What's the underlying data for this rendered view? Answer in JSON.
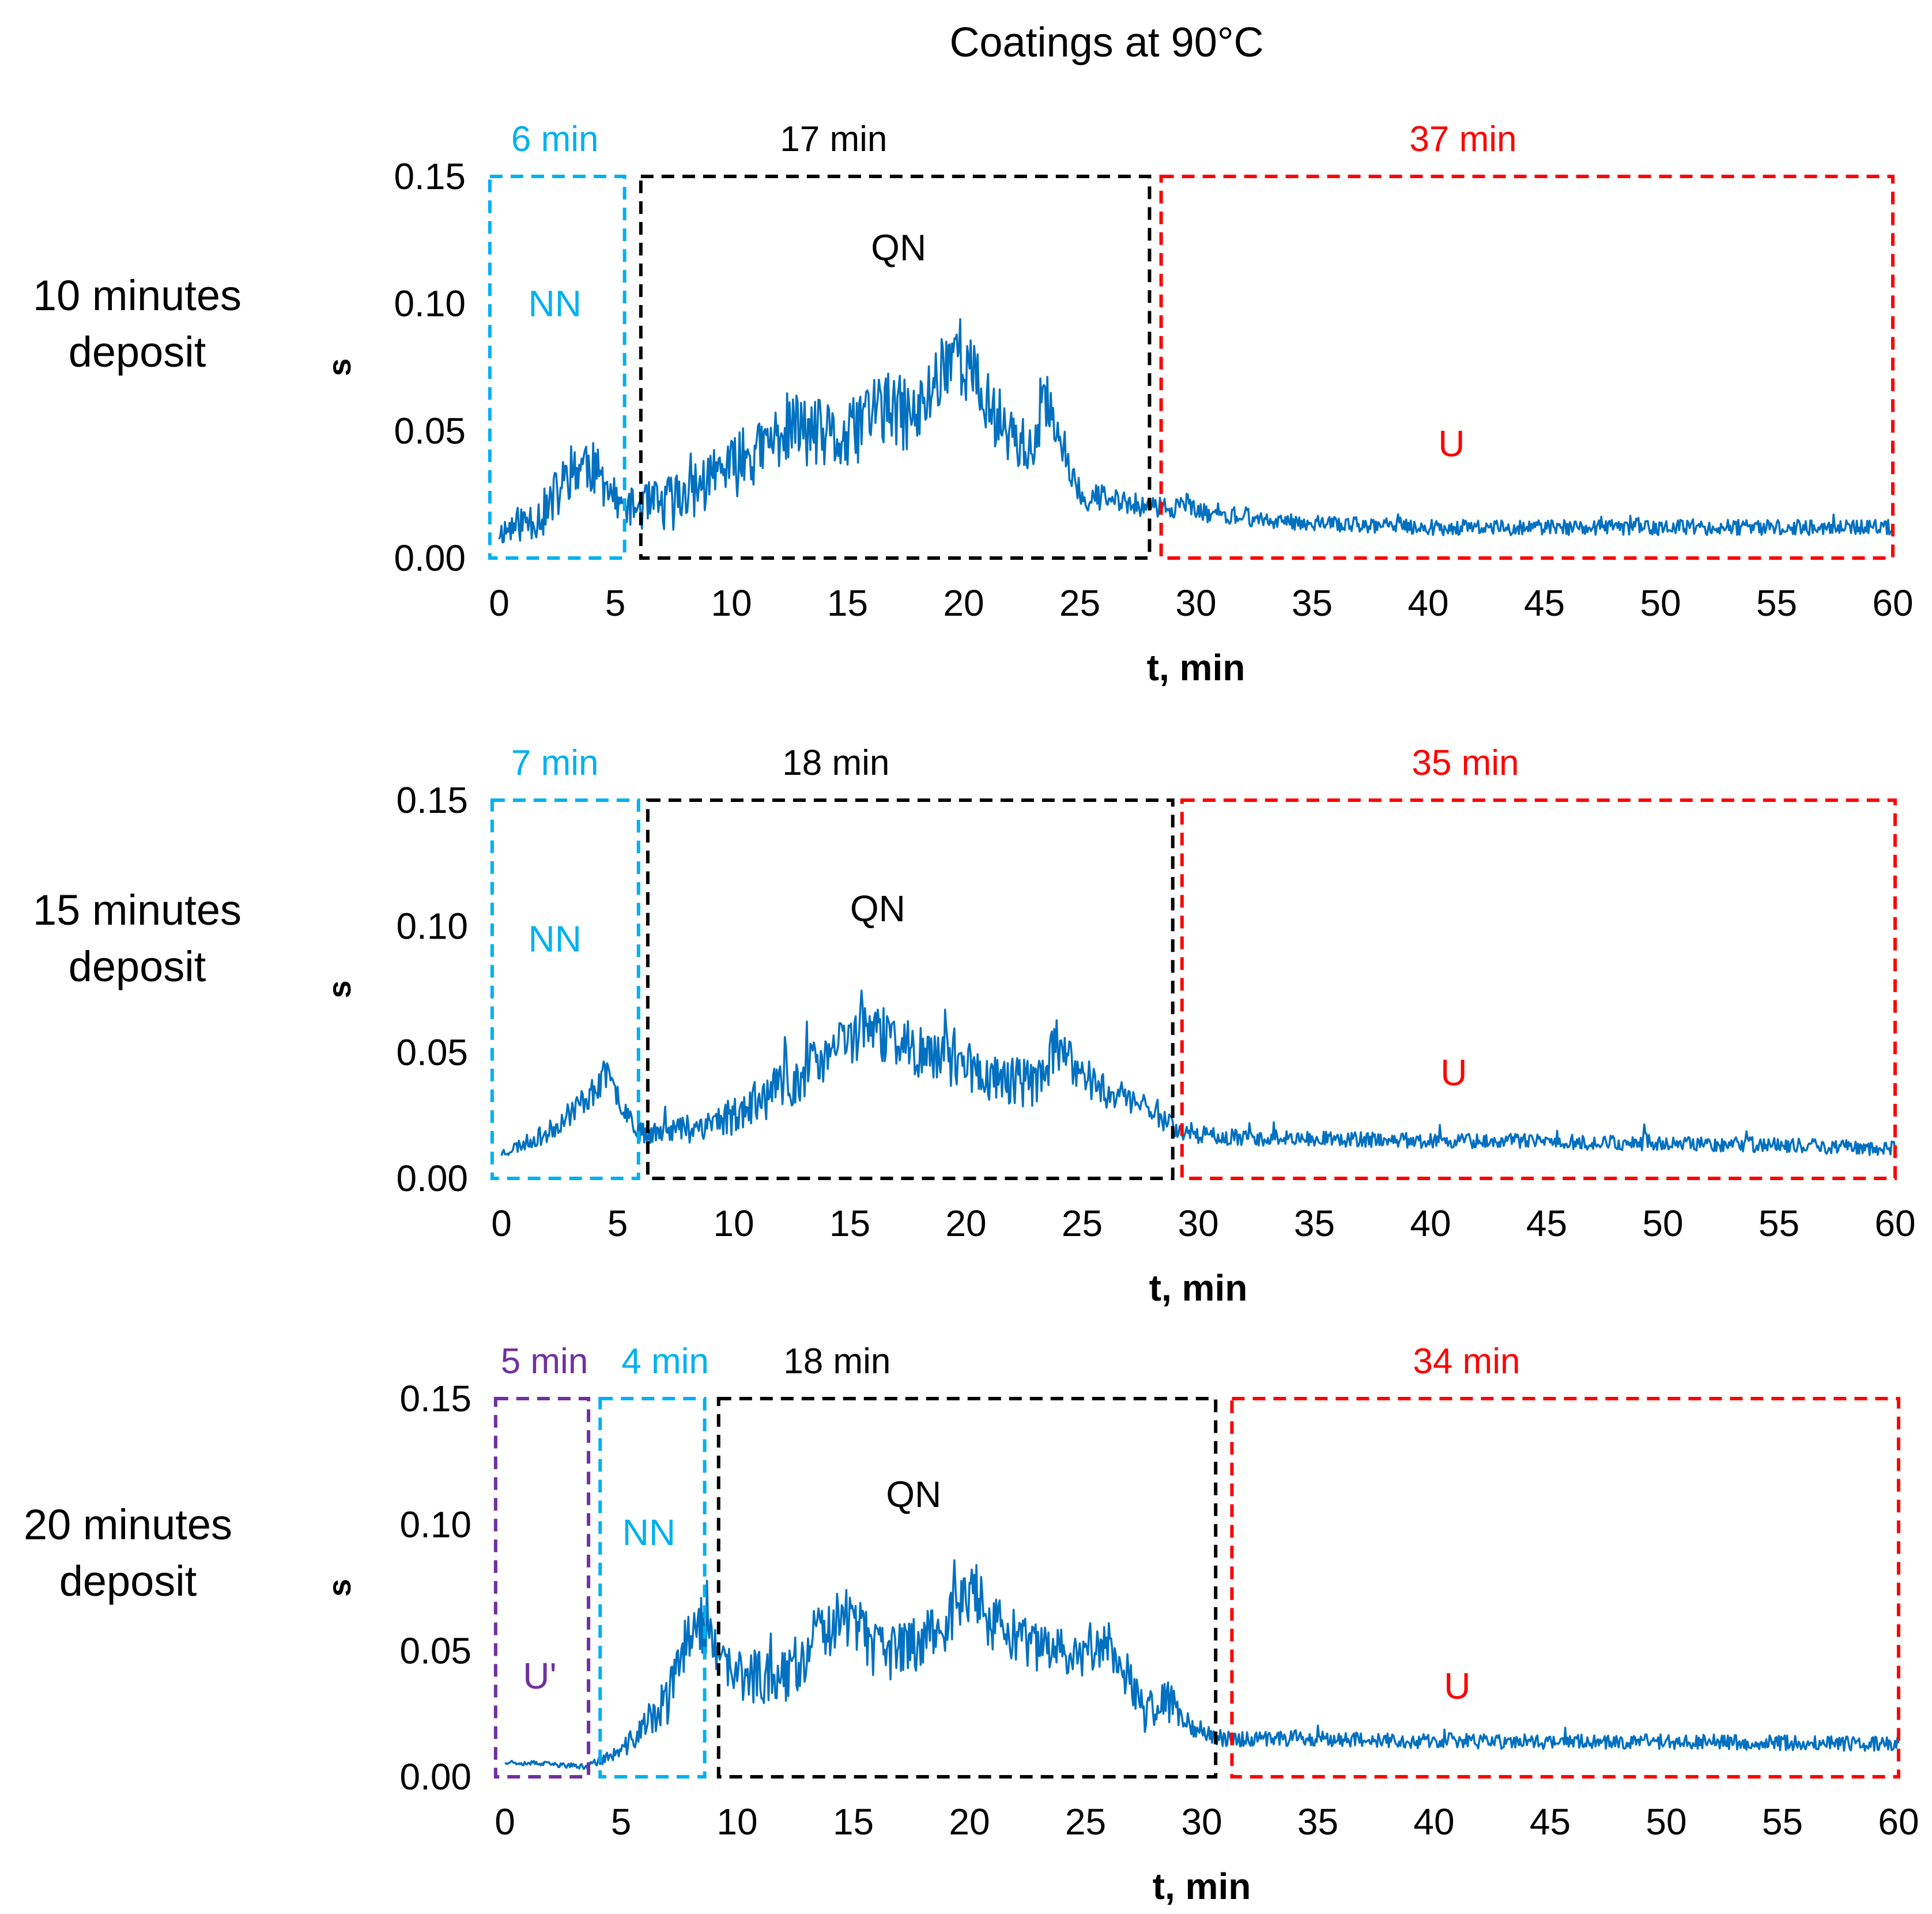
{
  "chart_data": {
    "title": "Coatings at 90°C",
    "type": "line",
    "colors": {
      "series": "#0070c0",
      "U'": "#7030a0",
      "NN": "#00b0f0",
      "QN": "#000000",
      "U": "#ff0000"
    },
    "panels": [
      {
        "row_label": [
          "10 minutes",
          "deposit"
        ],
        "xlabel": "t, min",
        "ylabel": "s",
        "xlim": [
          0,
          60
        ],
        "ylim": [
          0,
          0.15
        ],
        "xticks": [
          "0",
          "5",
          "10",
          "15",
          "20",
          "25",
          "30",
          "35",
          "40",
          "45",
          "50",
          "55",
          "60"
        ],
        "yticks": [
          "0.00",
          "0.05",
          "0.10",
          "0.15"
        ],
        "regions": [
          {
            "label": "NN",
            "duration_label": "6 min",
            "color_key": "NN",
            "x_start": -0.4,
            "x_end": 5.4,
            "label_x": 2.4,
            "label_y": 0.1,
            "dur_x": 2.4
          },
          {
            "label": "QN",
            "duration_label": "17 min",
            "color_key": "QN",
            "x_start": 6.1,
            "x_end": 28.0,
            "label_x": 17.2,
            "label_y": 0.122,
            "dur_x": 14.4
          },
          {
            "label": "U",
            "duration_label": "37 min",
            "color_key": "U",
            "x_start": 28.5,
            "x_end": 60.0,
            "label_x": 41.0,
            "label_y": 0.045,
            "dur_x": 41.5
          }
        ],
        "series": {
          "name": "s",
          "seed": 11,
          "x": [
            0,
            2,
            3.2,
            3.8,
            5.3,
            7,
            9,
            11,
            12.5,
            15,
            16,
            18,
            19.6,
            21,
            23,
            23.6,
            25,
            28,
            29,
            32,
            40,
            50,
            60
          ],
          "y": [
            0.01,
            0.018,
            0.035,
            0.038,
            0.02,
            0.02,
            0.03,
            0.04,
            0.052,
            0.045,
            0.06,
            0.055,
            0.085,
            0.06,
            0.04,
            0.062,
            0.025,
            0.02,
            0.02,
            0.015,
            0.012,
            0.012,
            0.012
          ],
          "noise": [
            0.005,
            0.01,
            0.012,
            0.012,
            0.006,
            0.012,
            0.012,
            0.012,
            0.014,
            0.014,
            0.016,
            0.014,
            0.016,
            0.014,
            0.01,
            0.01,
            0.006,
            0.004,
            0.004,
            0.003,
            0.003,
            0.003,
            0.003
          ]
        }
      },
      {
        "row_label": [
          "15 minutes",
          "deposit"
        ],
        "xlabel": "t, min",
        "ylabel": "s",
        "xlim": [
          0,
          60
        ],
        "ylim": [
          0,
          0.15
        ],
        "xticks": [
          "0",
          "5",
          "10",
          "15",
          "20",
          "25",
          "30",
          "35",
          "40",
          "45",
          "50",
          "55",
          "60"
        ],
        "yticks": [
          "0.00",
          "0.05",
          "0.10",
          "0.15"
        ],
        "regions": [
          {
            "label": "NN",
            "duration_label": "7 min",
            "color_key": "NN",
            "x_start": -0.4,
            "x_end": 5.9,
            "label_x": 2.3,
            "label_y": 0.095,
            "dur_x": 2.3
          },
          {
            "label": "QN",
            "duration_label": "18 min",
            "color_key": "QN",
            "x_start": 6.3,
            "x_end": 28.9,
            "label_x": 16.2,
            "label_y": 0.107,
            "dur_x": 14.4
          },
          {
            "label": "U",
            "duration_label": "35 min",
            "color_key": "U",
            "x_start": 29.3,
            "x_end": 60.0,
            "label_x": 41.0,
            "label_y": 0.042,
            "dur_x": 41.5
          }
        ],
        "series": {
          "name": "s",
          "seed": 23,
          "x": [
            0,
            2,
            4,
            4.5,
            6,
            8,
            10,
            12,
            13,
            15.5,
            17,
            19,
            21,
            23,
            23.8,
            26,
            28,
            29.3,
            32,
            40,
            50,
            60
          ],
          "y": [
            0.01,
            0.018,
            0.035,
            0.04,
            0.018,
            0.02,
            0.025,
            0.035,
            0.04,
            0.06,
            0.055,
            0.045,
            0.04,
            0.038,
            0.05,
            0.035,
            0.028,
            0.018,
            0.016,
            0.015,
            0.014,
            0.012
          ],
          "noise": [
            0.002,
            0.004,
            0.006,
            0.006,
            0.004,
            0.006,
            0.008,
            0.01,
            0.01,
            0.012,
            0.01,
            0.01,
            0.01,
            0.01,
            0.01,
            0.008,
            0.006,
            0.004,
            0.003,
            0.003,
            0.003,
            0.003
          ]
        }
      },
      {
        "row_label": [
          "20 minutes",
          "deposit"
        ],
        "xlabel": "t, min",
        "ylabel": "s",
        "xlim": [
          0,
          60
        ],
        "ylim": [
          0,
          0.15
        ],
        "xticks": [
          "0",
          "5",
          "10",
          "15",
          "20",
          "25",
          "30",
          "35",
          "40",
          "45",
          "50",
          "55",
          "60"
        ],
        "yticks": [
          "0.00",
          "0.05",
          "0.10",
          "0.15"
        ],
        "regions": [
          {
            "label": "U'",
            "duration_label": "5 min",
            "color_key": "U'",
            "x_start": -0.4,
            "x_end": 3.6,
            "label_x": 1.5,
            "label_y": 0.04,
            "dur_x": 1.7
          },
          {
            "label": "NN",
            "duration_label": "4 min",
            "color_key": "NN",
            "x_start": 4.1,
            "x_end": 8.6,
            "label_x": 6.2,
            "label_y": 0.097,
            "dur_x": 6.9
          },
          {
            "label": "QN",
            "duration_label": "18 min",
            "color_key": "QN",
            "x_start": 9.2,
            "x_end": 30.6,
            "label_x": 17.6,
            "label_y": 0.112,
            "dur_x": 14.3
          },
          {
            "label": "U",
            "duration_label": "34 min",
            "color_key": "U",
            "x_start": 31.3,
            "x_end": 60.0,
            "label_x": 41.0,
            "label_y": 0.036,
            "dur_x": 41.4
          }
        ],
        "series": {
          "name": "s",
          "seed": 37,
          "x": [
            0,
            3.5,
            5,
            7,
            8.2,
            9.2,
            10,
            12,
            14.5,
            16,
            17,
            19,
            20.2,
            21,
            23,
            25,
            26,
            27.5,
            28.5,
            30,
            31,
            35,
            40,
            50,
            60
          ],
          "y": [
            0.006,
            0.004,
            0.01,
            0.03,
            0.065,
            0.045,
            0.04,
            0.04,
            0.065,
            0.05,
            0.05,
            0.06,
            0.075,
            0.06,
            0.05,
            0.05,
            0.055,
            0.025,
            0.03,
            0.018,
            0.015,
            0.015,
            0.014,
            0.014,
            0.013
          ],
          "noise": [
            0.001,
            0.001,
            0.003,
            0.01,
            0.012,
            0.01,
            0.01,
            0.012,
            0.012,
            0.012,
            0.012,
            0.012,
            0.012,
            0.012,
            0.01,
            0.01,
            0.01,
            0.008,
            0.008,
            0.004,
            0.003,
            0.003,
            0.003,
            0.003,
            0.003
          ]
        }
      }
    ]
  }
}
